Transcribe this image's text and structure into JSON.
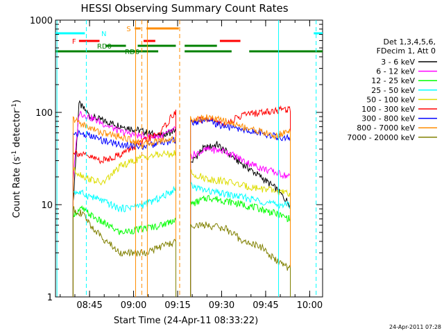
{
  "chart_data": {
    "type": "line",
    "title": "HESSI Observing Summary Count Rates",
    "xlabel": "Start Time (24-Apr-11 08:33:22)",
    "ylabel_main": "Count Rate (s",
    "ylabel_sup1": "-1",
    "ylabel_mid": " detector",
    "ylabel_sup2": "-1",
    "ylabel_end": ")",
    "y_scale": "log",
    "ylim": [
      1,
      1000
    ],
    "xlim_minutes": [
      -0.0,
      91.0
    ],
    "x_ticks": [
      {
        "label": "08:45",
        "minutes": 11.6
      },
      {
        "label": "09:00",
        "minutes": 26.6
      },
      {
        "label": "09:15",
        "minutes": 41.6
      },
      {
        "label": "09:30",
        "minutes": 56.6
      },
      {
        "label": "09:45",
        "minutes": 71.6
      },
      {
        "label": "10:00",
        "minutes": 86.6
      }
    ],
    "y_ticks": [
      {
        "label": "1",
        "value": 1
      },
      {
        "label": "10",
        "value": 10
      },
      {
        "label": "100",
        "value": 100
      },
      {
        "label": "1000",
        "value": 1000
      }
    ],
    "legend_header": [
      "Det 1,3,4,5,6,",
      "FDecim 1, Att 0"
    ],
    "series": [
      {
        "name": "3 - 6 keV",
        "color": "#000000",
        "seg1": [
          [
            6,
            10
          ],
          [
            8,
            125
          ],
          [
            12,
            90
          ],
          [
            20,
            75
          ],
          [
            30,
            62
          ],
          [
            36,
            55
          ],
          [
            41,
            65
          ]
        ],
        "seg2": [
          [
            46,
            28
          ],
          [
            50,
            40
          ],
          [
            55,
            45
          ],
          [
            62,
            30
          ],
          [
            70,
            20
          ],
          [
            75,
            15
          ],
          [
            80,
            10
          ]
        ]
      },
      {
        "name": "6 - 12 keV",
        "color": "#ff00ff",
        "seg1": [
          [
            6,
            18
          ],
          [
            8,
            100
          ],
          [
            14,
            82
          ],
          [
            22,
            62
          ],
          [
            30,
            55
          ],
          [
            36,
            55
          ],
          [
            41,
            66
          ]
        ],
        "seg2": [
          [
            46,
            34
          ],
          [
            52,
            40
          ],
          [
            58,
            38
          ],
          [
            64,
            30
          ],
          [
            70,
            25
          ],
          [
            80,
            20
          ]
        ]
      },
      {
        "name": "12 - 25 keV",
        "color": "#00ff00",
        "seg1": [
          [
            6,
            8
          ],
          [
            9,
            9
          ],
          [
            14,
            7
          ],
          [
            22,
            5
          ],
          [
            30,
            5.5
          ],
          [
            36,
            6
          ],
          [
            41,
            7
          ]
        ],
        "seg2": [
          [
            46,
            10
          ],
          [
            52,
            12
          ],
          [
            58,
            11
          ],
          [
            64,
            10
          ],
          [
            70,
            9
          ],
          [
            75,
            8
          ],
          [
            80,
            7
          ]
        ]
      },
      {
        "name": "25 - 50 keV",
        "color": "#00ffff",
        "seg1": [
          [
            6,
            14
          ],
          [
            10,
            13
          ],
          [
            16,
            11
          ],
          [
            22,
            9
          ],
          [
            30,
            10
          ],
          [
            36,
            12
          ],
          [
            41,
            15
          ]
        ],
        "seg2": [
          [
            46,
            16
          ],
          [
            52,
            14
          ],
          [
            58,
            13
          ],
          [
            64,
            12
          ],
          [
            70,
            11
          ],
          [
            75,
            10
          ],
          [
            80,
            10
          ]
        ]
      },
      {
        "name": "50 - 100 keV",
        "color": "#dddd00",
        "seg1": [
          [
            6,
            24
          ],
          [
            10,
            20
          ],
          [
            16,
            17
          ],
          [
            22,
            26
          ],
          [
            30,
            33
          ],
          [
            36,
            35
          ],
          [
            41,
            36
          ]
        ],
        "seg2": [
          [
            46,
            22
          ],
          [
            52,
            19
          ],
          [
            58,
            18
          ],
          [
            64,
            16
          ],
          [
            70,
            15
          ],
          [
            75,
            14
          ],
          [
            80,
            13
          ]
        ]
      },
      {
        "name": "100 - 300 keV",
        "color": "#ff0000",
        "seg1": [
          [
            6,
            38
          ],
          [
            10,
            34
          ],
          [
            16,
            30
          ],
          [
            22,
            35
          ],
          [
            30,
            48
          ],
          [
            36,
            62
          ],
          [
            41,
            104
          ]
        ],
        "seg2": [
          [
            46,
            80
          ],
          [
            52,
            85
          ],
          [
            58,
            75
          ],
          [
            64,
            95
          ],
          [
            70,
            100
          ],
          [
            75,
            105
          ],
          [
            80,
            110
          ]
        ]
      },
      {
        "name": "300 - 800 keV",
        "color": "#0000ff",
        "seg1": [
          [
            6,
            60
          ],
          [
            10,
            58
          ],
          [
            16,
            50
          ],
          [
            22,
            45
          ],
          [
            30,
            43
          ],
          [
            36,
            46
          ],
          [
            41,
            50
          ]
        ],
        "seg2": [
          [
            46,
            78
          ],
          [
            52,
            80
          ],
          [
            58,
            70
          ],
          [
            64,
            65
          ],
          [
            70,
            60
          ],
          [
            75,
            55
          ],
          [
            80,
            52
          ]
        ]
      },
      {
        "name": "800 - 7000 keV",
        "color": "#ff8c00",
        "seg1": [
          [
            6,
            85
          ],
          [
            10,
            72
          ],
          [
            16,
            60
          ],
          [
            22,
            55
          ],
          [
            30,
            45
          ],
          [
            36,
            50
          ],
          [
            41,
            52
          ]
        ],
        "seg2": [
          [
            46,
            85
          ],
          [
            52,
            88
          ],
          [
            58,
            80
          ],
          [
            64,
            70
          ],
          [
            70,
            62
          ],
          [
            75,
            55
          ],
          [
            80,
            65
          ]
        ]
      },
      {
        "name": "7000 - 20000 keV",
        "color": "#808000",
        "seg1": [
          [
            6,
            9
          ],
          [
            9,
            8
          ],
          [
            14,
            5
          ],
          [
            22,
            3
          ],
          [
            30,
            3
          ],
          [
            36,
            3.5
          ],
          [
            41,
            4
          ]
        ],
        "seg2": [
          [
            46,
            6
          ],
          [
            52,
            6
          ],
          [
            58,
            5.5
          ],
          [
            64,
            4
          ],
          [
            70,
            3.5
          ],
          [
            75,
            2.5
          ],
          [
            80,
            2
          ]
        ]
      }
    ],
    "flags": [
      {
        "label": "N",
        "color": "#00ffff",
        "spans": [
          [
            0,
            10
          ],
          [
            88,
            91
          ]
        ],
        "level": "top"
      },
      {
        "label": "S",
        "color": "#ff8c00",
        "spans": [
          [
            27,
            29
          ],
          [
            31,
            42
          ]
        ],
        "level": "upper"
      },
      {
        "label": "F",
        "color": "#ff0000",
        "spans": [
          [
            8,
            15
          ],
          [
            30,
            34
          ],
          [
            56,
            63
          ]
        ],
        "level": "middle"
      },
      {
        "label": "RD0",
        "color": "#008000",
        "spans": [
          [
            17,
            24
          ],
          [
            28,
            41
          ],
          [
            44,
            55
          ]
        ],
        "level": "lower"
      },
      {
        "label": "RD6",
        "color": "#008000",
        "spans": [
          [
            0,
            35
          ],
          [
            44,
            60
          ],
          [
            66,
            91
          ]
        ],
        "level": "bottom"
      }
    ],
    "vertical_lines": [
      {
        "minutes": 0.5,
        "color": "#00ffff",
        "style": "solid"
      },
      {
        "minutes": 10.5,
        "color": "#00ffff",
        "style": "dashed"
      },
      {
        "minutes": 76.0,
        "color": "#00ffff",
        "style": "solid"
      },
      {
        "minutes": 88.8,
        "color": "#00ffff",
        "style": "dashed"
      },
      {
        "minutes": 27.3,
        "color": "#ff8c00",
        "style": "solid"
      },
      {
        "minutes": 29.4,
        "color": "#ff8c00",
        "style": "dashed"
      },
      {
        "minutes": 31.3,
        "color": "#ff8c00",
        "style": "solid"
      },
      {
        "minutes": 42.3,
        "color": "#ff8c00",
        "style": "dashed"
      }
    ],
    "grid": false,
    "legend_position": "right"
  },
  "footer_timestamp": "24-Apr-2011 07:28"
}
